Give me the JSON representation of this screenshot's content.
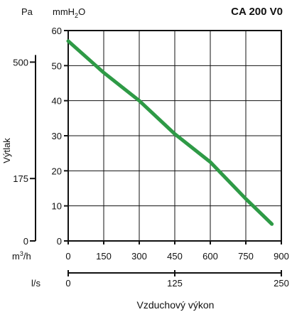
{
  "chart_data": {
    "type": "line",
    "title": "CA 200 V0",
    "ylabel": "Výtlak",
    "xlabel": "Vzduchový výkon",
    "y_primary": {
      "unit": "mmH2O",
      "unit_main": "mmH",
      "unit_sub": "2",
      "unit_tail": "O",
      "range": [
        0,
        60
      ],
      "ticks": [
        0,
        10,
        20,
        30,
        40,
        50,
        60
      ]
    },
    "y_secondary": {
      "unit": "Pa",
      "ticks": [
        {
          "label": "500",
          "value_mmH2O": 51
        },
        {
          "label": "175",
          "value_mmH2O": 17.8
        },
        {
          "label": "0",
          "value_mmH2O": 0
        }
      ]
    },
    "x_primary": {
      "unit": "m³/h",
      "unit_main": "m",
      "unit_sup": "3",
      "unit_tail": "/h",
      "range": [
        0,
        900
      ],
      "ticks": [
        0,
        150,
        300,
        450,
        600,
        750,
        900
      ]
    },
    "x_secondary": {
      "unit": "l/s",
      "range": [
        0,
        250
      ],
      "ticks": [
        0,
        125,
        250
      ]
    },
    "grid": true,
    "series": [
      {
        "color": "#2e9a46",
        "x": [
          0,
          150,
          300,
          450,
          600,
          750,
          860
        ],
        "y": [
          57,
          48,
          40,
          30.5,
          22.5,
          12,
          4.8
        ]
      }
    ]
  }
}
